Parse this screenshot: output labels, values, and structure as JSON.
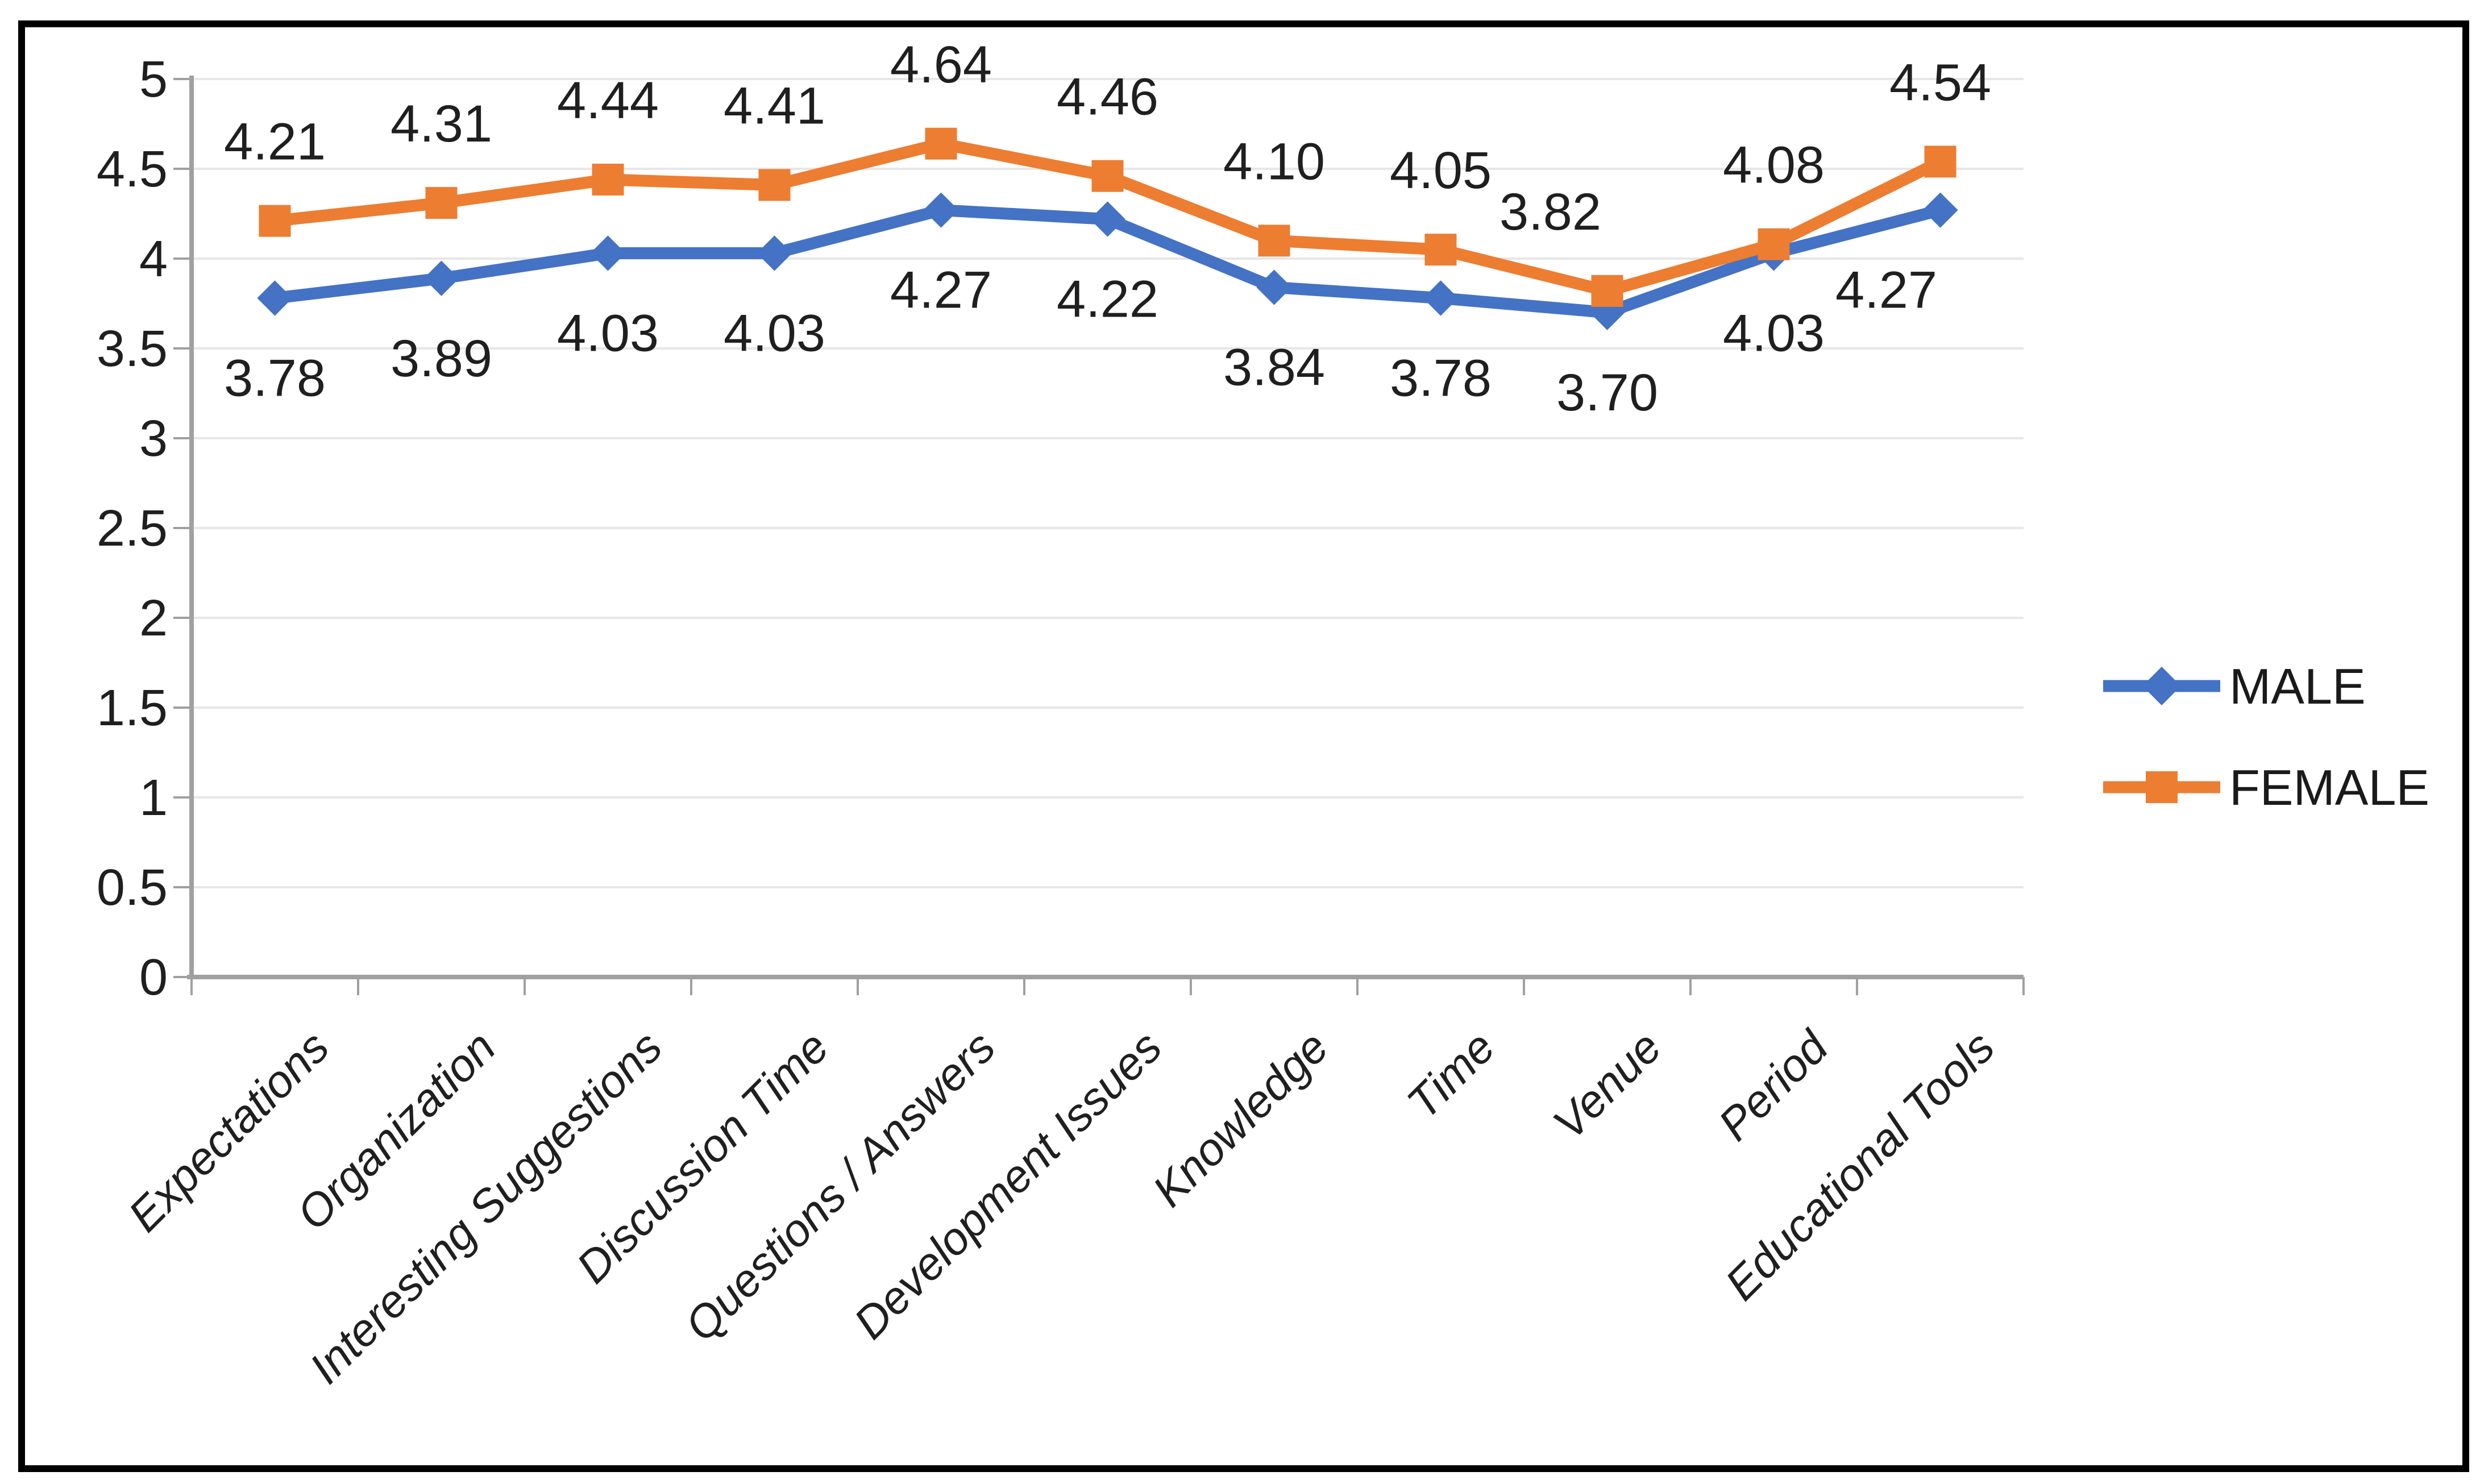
{
  "figure": {
    "background_color": "#FFFFFF",
    "border_color": "#000000"
  },
  "chart_data": {
    "type": "line",
    "title": "",
    "xlabel": "",
    "ylabel": "",
    "grid": "horizontal",
    "categories": [
      "Expectations",
      "Organization",
      "Interesting Suggestions",
      "Discussion Time",
      "Questions / Answers",
      "Development Issues",
      "Knowledge",
      "Time",
      "Venue",
      "Period",
      "Educational Tools"
    ],
    "series": [
      {
        "name": "MALE",
        "color": "#4472C4",
        "marker": "diamond",
        "values": [
          3.78,
          3.89,
          4.03,
          4.03,
          4.27,
          4.22,
          3.84,
          3.78,
          3.7,
          4.03,
          4.27
        ],
        "labels": [
          "3.78",
          "3.89",
          "4.03",
          "4.03",
          "4.27",
          "4.22",
          "3.84",
          "3.78",
          "3.70",
          "4.03",
          "4.27"
        ],
        "label_position": "below"
      },
      {
        "name": "FEMALE",
        "color": "#ED7D31",
        "marker": "square",
        "values": [
          4.21,
          4.31,
          4.44,
          4.41,
          4.64,
          4.46,
          4.1,
          4.05,
          3.82,
          4.08,
          4.54
        ],
        "labels": [
          "4.21",
          "4.31",
          "4.44",
          "4.41",
          "4.64",
          "4.46",
          "4.10",
          "4.05",
          "3.82",
          "4.08",
          "4.54"
        ],
        "label_position": "above"
      }
    ],
    "y_axis": {
      "min": 0,
      "max": 5,
      "step": 0.5,
      "tick_labels": [
        "0",
        "0.5",
        "1",
        "1.5",
        "2",
        "2.5",
        "3",
        "3.5",
        "4",
        "4.5",
        "5"
      ]
    },
    "legend": {
      "position": "right",
      "entries": [
        {
          "label": "MALE",
          "color": "#4472C4",
          "marker": "diamond"
        },
        {
          "label": "FEMALE",
          "color": "#ED7D31",
          "marker": "square"
        }
      ]
    },
    "style_colors": {
      "gridline": "#E7E7E7",
      "axis": "#A0A0A0",
      "tick": "#A0A0A0",
      "text": "#1F1F1F"
    }
  }
}
